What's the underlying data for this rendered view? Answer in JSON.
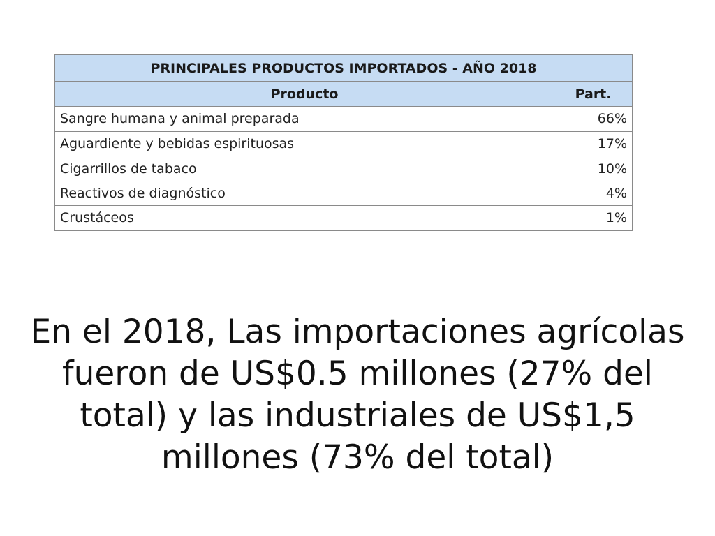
{
  "table": {
    "title": "PRINCIPALES PRODUCTOS IMPORTADOS -  AÑO 2018",
    "headers": [
      "Producto",
      "Part."
    ],
    "rows": [
      {
        "product": "Sangre humana y animal preparada",
        "share": "66%"
      },
      {
        "product": "Aguardiente y bebidas espirituosas",
        "share": "17%"
      },
      {
        "product": "Cigarrillos de tabaco",
        "share": "10%"
      },
      {
        "product": "Reactivos de diagnóstico",
        "share": "4%"
      },
      {
        "product": "Crustáceos",
        "share": "1%"
      }
    ],
    "header_color": "#c6dcf3"
  },
  "caption": {
    "text": "En el 2018, Las importaciones agrícolas fueron de US$0.5 millones (27% del total) y las industriales de US$1,5 millones (73% del total)"
  }
}
